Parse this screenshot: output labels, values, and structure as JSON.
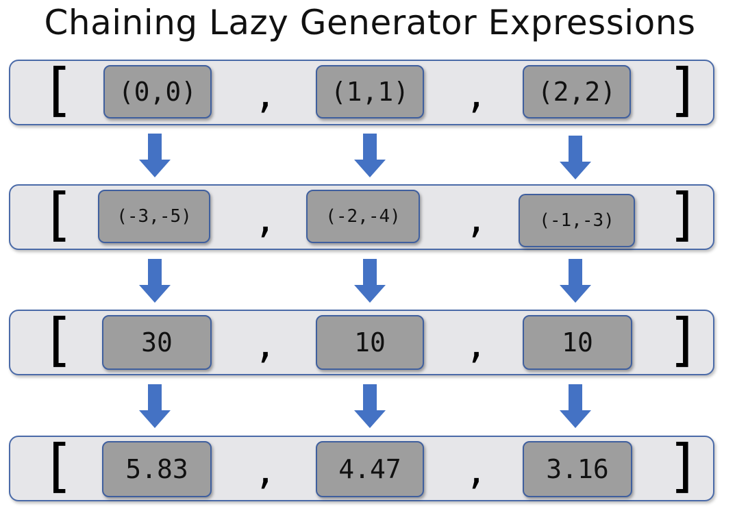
{
  "title": "Chaining Lazy Generator Expressions",
  "rows": [
    {
      "open": "[",
      "close": "]",
      "sep": ",",
      "items": [
        "(0,0)",
        "(1,1)",
        "(2,2)"
      ]
    },
    {
      "open": "[",
      "close": "]",
      "sep": ",",
      "items": [
        "(-3,-5)",
        "(-2,-4)",
        "(-1,-3)"
      ]
    },
    {
      "open": "[",
      "close": "]",
      "sep": ",",
      "items": [
        "30",
        "10",
        "10"
      ]
    },
    {
      "open": "[",
      "close": "]",
      "sep": ",",
      "items": [
        "5.83",
        "4.47",
        "3.16"
      ]
    }
  ],
  "colors": {
    "arrow": "#4472c4",
    "row_bg": "#e6e6e9",
    "cell_bg": "#9e9e9e",
    "border": "#4a6aa8"
  },
  "arrow_icon": "down-arrow-icon"
}
